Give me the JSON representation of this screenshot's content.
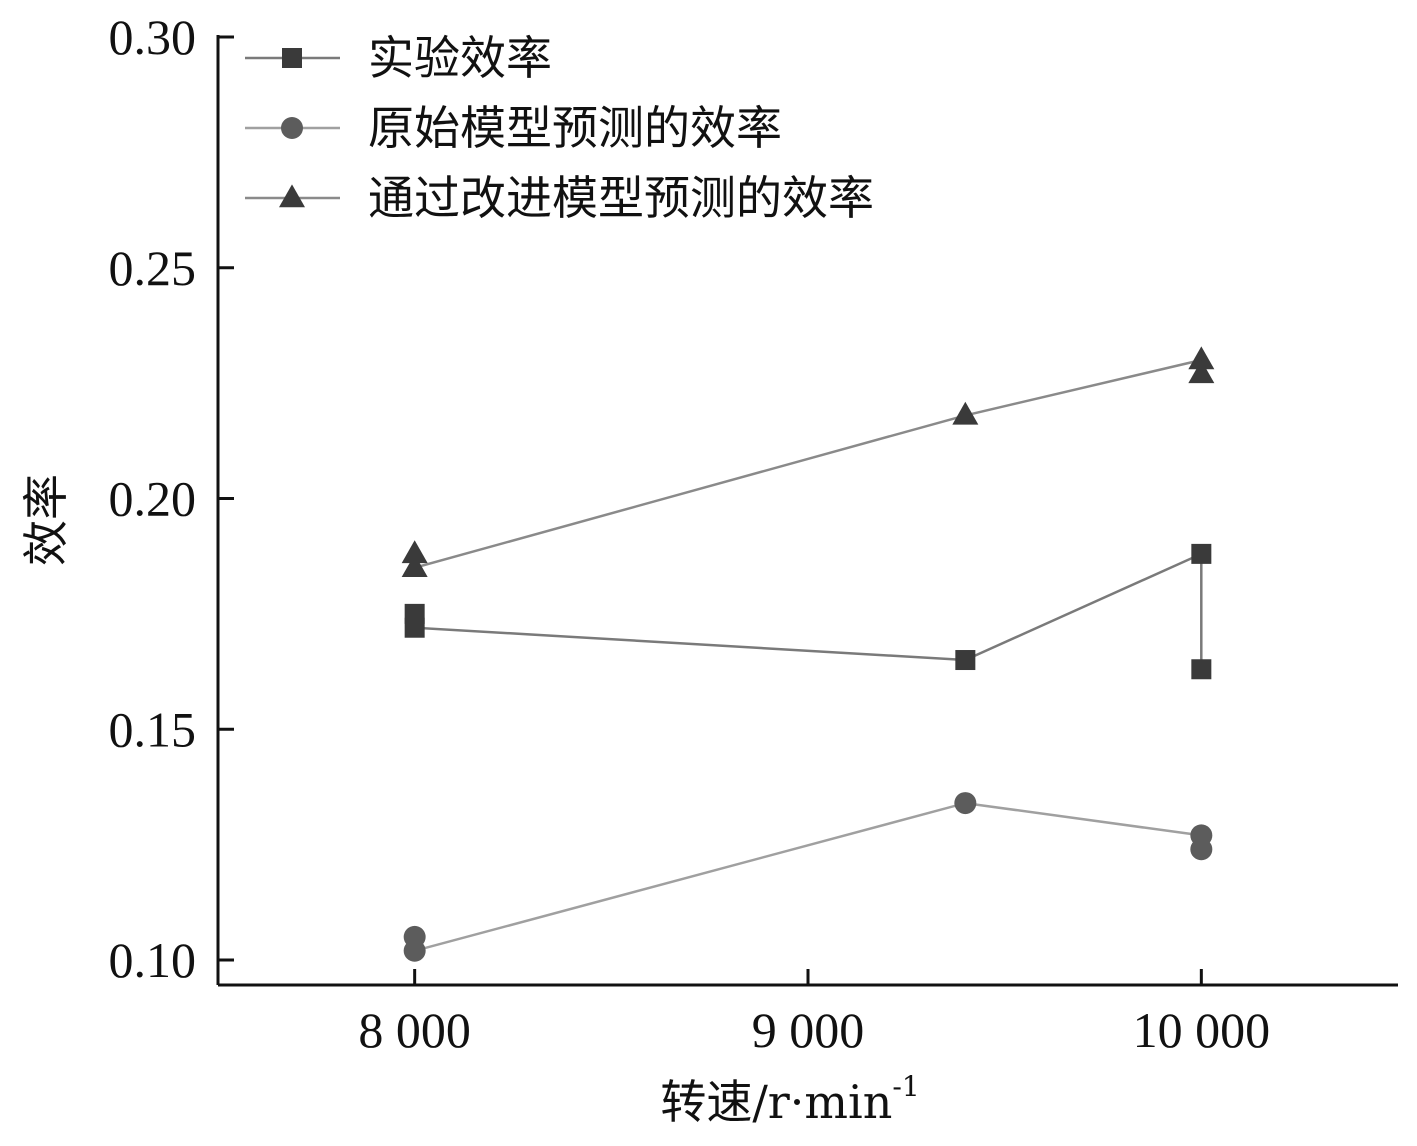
{
  "chart_data": {
    "type": "line",
    "title": "",
    "xlabel": "转速/r·min",
    "xlabel_superscript": "-1",
    "ylabel": "效率",
    "xlim": [
      7500,
      10500
    ],
    "ylim": [
      0.095,
      0.3
    ],
    "x_ticks": [
      8000,
      9000,
      10000
    ],
    "x_tick_labels": [
      "8 000",
      "9 000",
      "10 000"
    ],
    "y_ticks": [
      0.1,
      0.15,
      0.2,
      0.25,
      0.3
    ],
    "y_tick_labels": [
      "0.10",
      "0.15",
      "0.20",
      "0.25",
      "0.30"
    ],
    "grid": false,
    "legend_position": "top-left",
    "series": [
      {
        "name": "实验效率",
        "marker": "square",
        "color": "#3a3a3a",
        "line_color": "#7a7a7a",
        "points": [
          {
            "x": 8000,
            "y": 0.175
          },
          {
            "x": 8000,
            "y": 0.172
          },
          {
            "x": 9400,
            "y": 0.165
          },
          {
            "x": 10000,
            "y": 0.188
          },
          {
            "x": 10000,
            "y": 0.163
          }
        ]
      },
      {
        "name": "原始模型预测的效率",
        "marker": "circle",
        "color": "#5c5c5c",
        "line_color": "#a0a0a0",
        "points": [
          {
            "x": 8000,
            "y": 0.105
          },
          {
            "x": 8000,
            "y": 0.102
          },
          {
            "x": 9400,
            "y": 0.134
          },
          {
            "x": 10000,
            "y": 0.127
          },
          {
            "x": 10000,
            "y": 0.124
          }
        ]
      },
      {
        "name": "通过改进模型预测的效率",
        "marker": "triangle",
        "color": "#3a3a3a",
        "line_color": "#8a8a8a",
        "points": [
          {
            "x": 8000,
            "y": 0.188
          },
          {
            "x": 8000,
            "y": 0.185
          },
          {
            "x": 9400,
            "y": 0.218
          },
          {
            "x": 10000,
            "y": 0.23
          },
          {
            "x": 10000,
            "y": 0.227
          }
        ]
      }
    ]
  }
}
